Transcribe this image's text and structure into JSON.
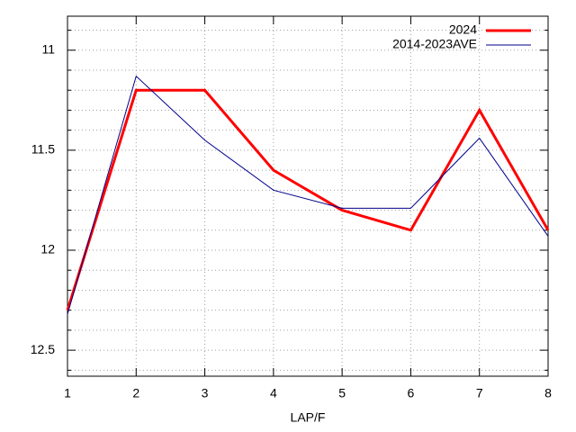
{
  "chart_data": {
    "type": "line",
    "xlabel": "LAP/F",
    "x": [
      1,
      2,
      3,
      4,
      5,
      6,
      7,
      8
    ],
    "series": [
      {
        "name": "2024",
        "color": "#ff0000",
        "width": 3,
        "values": [
          12.3,
          11.2,
          11.2,
          11.6,
          11.8,
          11.9,
          11.3,
          11.9
        ]
      },
      {
        "name": "2014-2023AVE",
        "color": "#00008b",
        "width": 1,
        "values": [
          12.32,
          11.13,
          11.45,
          11.7,
          11.79,
          11.79,
          11.44,
          11.93
        ]
      }
    ],
    "xlim": [
      1,
      8
    ],
    "xticks": [
      1,
      2,
      3,
      4,
      5,
      6,
      7,
      8
    ],
    "ylim": [
      12.63,
      10.83
    ],
    "yticks": [
      11,
      11.5,
      12,
      12.5
    ],
    "yminor": 5,
    "grid": true,
    "legend": "top-right"
  }
}
